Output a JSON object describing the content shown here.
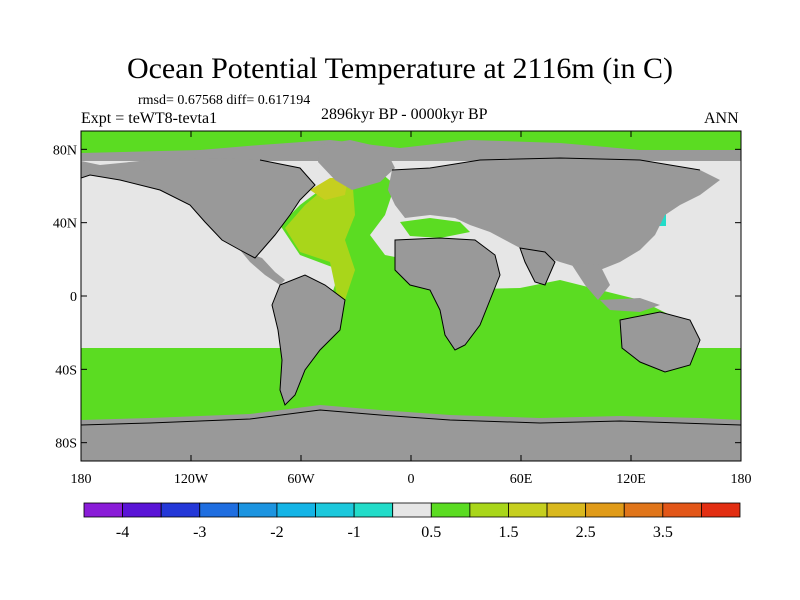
{
  "title": "Ocean Potential Temperature at 2116m (in C)",
  "stats": "rmsd= 0.67568 diff= 0.617194",
  "expt": "Expt = teWT8-tevta1",
  "period": "2896kyr BP - 0000kyr BP",
  "season": "ANN",
  "lat_labels": [
    "80N",
    "40N",
    "0",
    "40S",
    "80S"
  ],
  "lat_values": [
    80,
    40,
    0,
    -40,
    -80
  ],
  "lon_labels": [
    "180",
    "120W",
    "60W",
    "0",
    "60E",
    "120E",
    "180"
  ],
  "lon_values": [
    -180,
    -120,
    -60,
    0,
    60,
    120,
    180
  ],
  "map_extent": {
    "lon": [
      -180,
      180
    ],
    "lat": [
      -90,
      90
    ]
  },
  "colors": {
    "land": "#999999",
    "missing": "#e6e6e6",
    "bin_0_5_to_1": "#5bdc22",
    "bin_1_to_1_5": "#a9d61a",
    "bin_m1_to_m0_5": "#22dcc9",
    "bin_1_5_to_2": "#c6cf1f",
    "coast": "#000000"
  },
  "colorbar": {
    "colors": [
      "#8a1cd8",
      "#5a14d6",
      "#2438d8",
      "#1f6ee0",
      "#1c94e0",
      "#14b4e6",
      "#1cc8dc",
      "#22dcc9",
      "#e6e6e6",
      "#5bdc22",
      "#a9d61a",
      "#c6cf1f",
      "#d9b81e",
      "#e09b19",
      "#e0751a",
      "#e25618",
      "#e22e12"
    ],
    "labels": [
      "-4",
      "-3",
      "-2",
      "-1",
      "0.5",
      "1.5",
      "2.5",
      "3.5"
    ],
    "label_after_box": [
      1,
      3,
      5,
      7,
      9,
      11,
      13,
      15
    ]
  }
}
